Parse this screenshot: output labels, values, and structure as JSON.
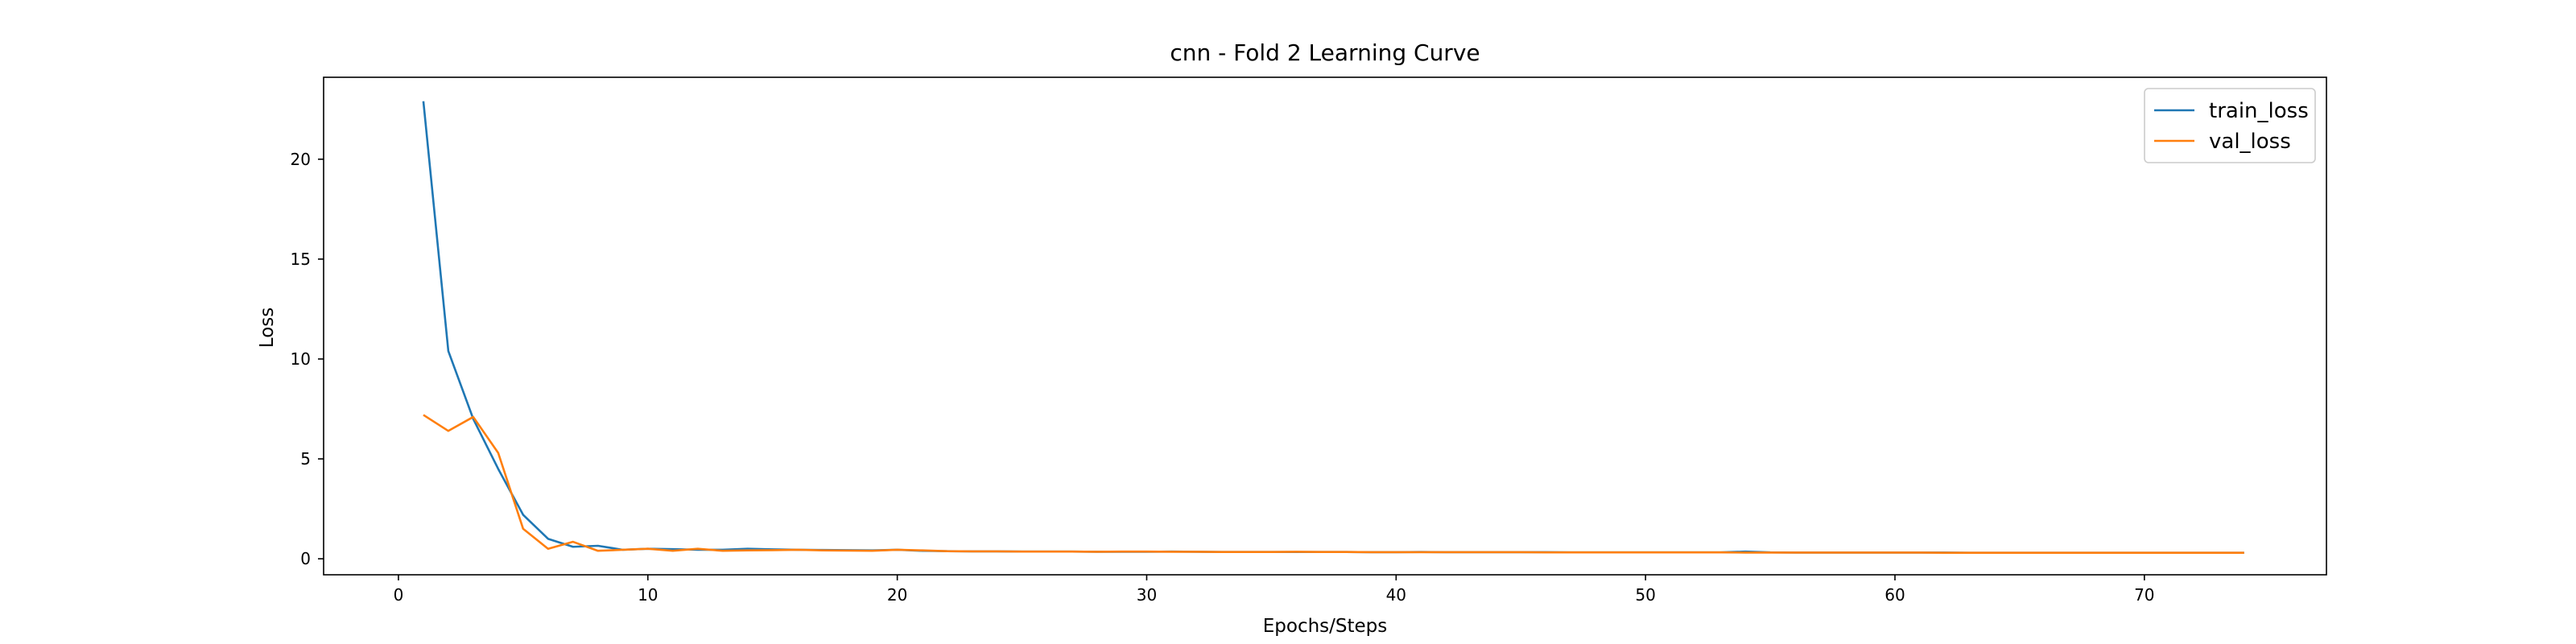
{
  "chart_data": {
    "type": "line",
    "title": "cnn - Fold 2 Learning Curve",
    "xlabel": "Epochs/Steps",
    "ylabel": "Loss",
    "xlim": [
      -3,
      77.3
    ],
    "ylim": [
      -0.8,
      24.1
    ],
    "xticks": [
      0,
      10,
      20,
      30,
      40,
      50,
      60,
      70
    ],
    "yticks": [
      0,
      5,
      10,
      15,
      20
    ],
    "grid": false,
    "legend_position": "top-right",
    "x": [
      1,
      2,
      3,
      4,
      5,
      6,
      7,
      8,
      9,
      10,
      11,
      12,
      13,
      14,
      15,
      16,
      17,
      18,
      19,
      20,
      21,
      22,
      23,
      24,
      25,
      26,
      27,
      28,
      29,
      30,
      31,
      32,
      33,
      34,
      35,
      36,
      37,
      38,
      39,
      40,
      41,
      42,
      43,
      44,
      45,
      46,
      47,
      48,
      49,
      50,
      51,
      52,
      53,
      54,
      55,
      56,
      57,
      58,
      59,
      60,
      61,
      62,
      63,
      64,
      65,
      66,
      67,
      68,
      69,
      70,
      71,
      72,
      73,
      74
    ],
    "series": [
      {
        "name": "train_loss",
        "color": "#1f77b4",
        "values": [
          22.9,
          10.4,
          7.0,
          4.5,
          2.2,
          1.0,
          0.6,
          0.65,
          0.45,
          0.5,
          0.48,
          0.45,
          0.45,
          0.5,
          0.47,
          0.45,
          0.44,
          0.43,
          0.42,
          0.45,
          0.4,
          0.38,
          0.37,
          0.37,
          0.36,
          0.36,
          0.36,
          0.35,
          0.35,
          0.35,
          0.36,
          0.35,
          0.34,
          0.34,
          0.34,
          0.34,
          0.34,
          0.34,
          0.33,
          0.33,
          0.34,
          0.33,
          0.33,
          0.33,
          0.33,
          0.33,
          0.32,
          0.32,
          0.32,
          0.32,
          0.32,
          0.32,
          0.32,
          0.36,
          0.32,
          0.31,
          0.31,
          0.31,
          0.31,
          0.31,
          0.31,
          0.31,
          0.3,
          0.3,
          0.3,
          0.3,
          0.3,
          0.3,
          0.3,
          0.3,
          0.3,
          0.3,
          0.3,
          0.3
        ]
      },
      {
        "name": "val_loss",
        "color": "#ff7f0e",
        "values": [
          7.2,
          6.4,
          7.1,
          5.3,
          1.5,
          0.5,
          0.85,
          0.4,
          0.45,
          0.5,
          0.4,
          0.5,
          0.4,
          0.42,
          0.43,
          0.45,
          0.42,
          0.41,
          0.4,
          0.45,
          0.42,
          0.38,
          0.37,
          0.37,
          0.36,
          0.36,
          0.36,
          0.35,
          0.36,
          0.36,
          0.35,
          0.35,
          0.34,
          0.34,
          0.34,
          0.35,
          0.34,
          0.34,
          0.33,
          0.33,
          0.33,
          0.33,
          0.33,
          0.33,
          0.33,
          0.32,
          0.32,
          0.32,
          0.32,
          0.32,
          0.32,
          0.32,
          0.32,
          0.31,
          0.31,
          0.31,
          0.31,
          0.31,
          0.31,
          0.31,
          0.31,
          0.3,
          0.3,
          0.3,
          0.3,
          0.3,
          0.3,
          0.3,
          0.3,
          0.3,
          0.3,
          0.3,
          0.3,
          0.3
        ]
      }
    ]
  }
}
